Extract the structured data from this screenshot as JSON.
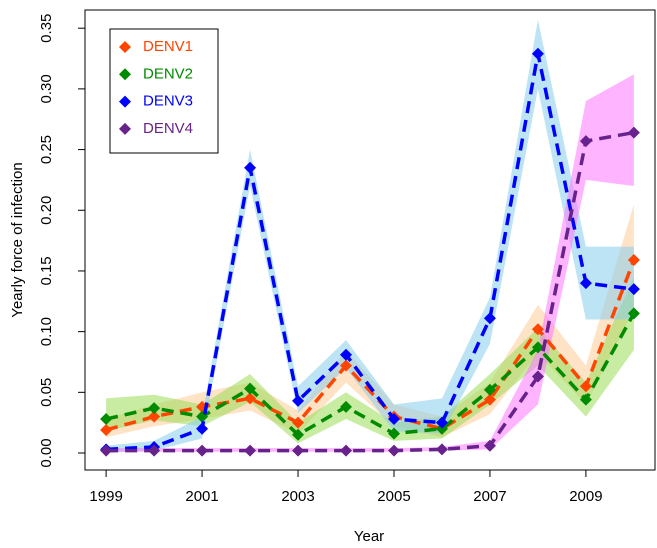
{
  "chart_data": {
    "type": "line",
    "x_label": "Year",
    "y_label": "Yearly force of infection",
    "x": [
      1999,
      2000,
      2001,
      2002,
      2003,
      2004,
      2005,
      2006,
      2007,
      2008,
      2009,
      2010
    ],
    "xlim": [
      1998.56,
      2010.44
    ],
    "xticks": [
      1999,
      2001,
      2003,
      2005,
      2007,
      2009
    ],
    "ylim": [
      -0.014,
      0.365
    ],
    "yticks": [
      {
        "value": 0,
        "label": "0.00"
      },
      {
        "value": 0.05,
        "label": "0.05"
      },
      {
        "value": 0.1,
        "label": "0.10"
      },
      {
        "value": 0.15,
        "label": "0.15"
      },
      {
        "value": 0.2,
        "label": "0.20"
      },
      {
        "value": 0.25,
        "label": "0.25"
      },
      {
        "value": 0.3,
        "label": "0.30"
      },
      {
        "value": 0.35,
        "label": "0.35"
      }
    ],
    "legend": "top-left",
    "series": [
      {
        "name": "DENV1",
        "color": "#ff4500",
        "band_color": "#ffcc99",
        "values": [
          0.019,
          0.03,
          0.038,
          0.045,
          0.025,
          0.072,
          0.03,
          0.02,
          0.044,
          0.102,
          0.055,
          0.159
        ],
        "lower": [
          0.013,
          0.022,
          0.028,
          0.035,
          0.016,
          0.058,
          0.022,
          0.013,
          0.032,
          0.082,
          0.04,
          0.118
        ],
        "upper": [
          0.028,
          0.04,
          0.05,
          0.058,
          0.035,
          0.085,
          0.04,
          0.03,
          0.058,
          0.122,
          0.072,
          0.205
        ]
      },
      {
        "name": "DENV2",
        "color": "#008b00",
        "band_color": "#99dd55",
        "values": [
          0.028,
          0.037,
          0.03,
          0.053,
          0.015,
          0.038,
          0.016,
          0.02,
          0.052,
          0.087,
          0.044,
          0.115
        ],
        "lower": [
          0.018,
          0.027,
          0.022,
          0.042,
          0.008,
          0.028,
          0.01,
          0.012,
          0.04,
          0.072,
          0.03,
          0.085
        ],
        "upper": [
          0.045,
          0.048,
          0.04,
          0.065,
          0.025,
          0.05,
          0.025,
          0.03,
          0.065,
          0.103,
          0.058,
          0.145
        ]
      },
      {
        "name": "DENV3",
        "color": "#0000ff",
        "band_color": "#87ceeb",
        "values": [
          0.003,
          0.005,
          0.02,
          0.235,
          0.043,
          0.081,
          0.028,
          0.025,
          0.111,
          0.329,
          0.14,
          0.135
        ],
        "lower": [
          0.0,
          0.002,
          0.012,
          0.22,
          0.033,
          0.07,
          0.018,
          0.016,
          0.09,
          0.3,
          0.11,
          0.11
        ],
        "upper": [
          0.006,
          0.01,
          0.03,
          0.25,
          0.055,
          0.093,
          0.04,
          0.045,
          0.128,
          0.357,
          0.17,
          0.17
        ]
      },
      {
        "name": "DENV4",
        "color": "#68228b",
        "band_color": "#ff77ff",
        "values": [
          0.002,
          0.002,
          0.002,
          0.002,
          0.002,
          0.002,
          0.002,
          0.003,
          0.006,
          0.063,
          0.257,
          0.264
        ],
        "lower": [
          0.001,
          0.001,
          0.001,
          0.001,
          0.001,
          0.001,
          0.001,
          0.002,
          0.003,
          0.04,
          0.225,
          0.22
        ],
        "upper": [
          0.004,
          0.004,
          0.004,
          0.004,
          0.004,
          0.004,
          0.004,
          0.005,
          0.01,
          0.085,
          0.29,
          0.312
        ]
      }
    ]
  }
}
